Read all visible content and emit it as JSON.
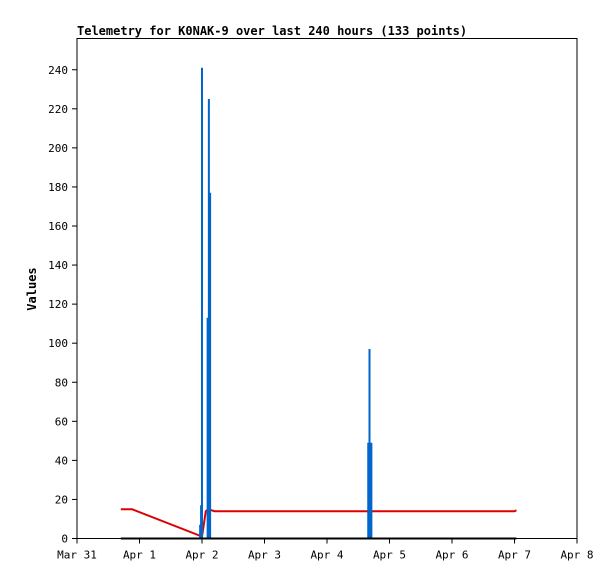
{
  "chart_data": {
    "type": "line",
    "title": "Telemetry for K0NAK-9 over last 240 hours (133 points)",
    "xlabel": "",
    "ylabel": "Values",
    "x_ticks": [
      "Mar 31",
      "Apr 1",
      "Apr 2",
      "Apr 3",
      "Apr 4",
      "Apr 5",
      "Apr 6",
      "Apr 7",
      "Apr 8"
    ],
    "xlim": [
      0,
      8
    ],
    "ylim": [
      0,
      256
    ],
    "y_ticks": [
      0,
      20,
      40,
      60,
      80,
      100,
      120,
      140,
      160,
      180,
      200,
      220,
      240
    ],
    "grid": false,
    "legend": "none",
    "x_unit": "days from Mar 31 00:00",
    "series": [
      {
        "color": "#dd0000",
        "style": "line",
        "points": [
          [
            0.7,
            15
          ],
          [
            0.88,
            15
          ],
          [
            2.0,
            1
          ],
          [
            2.06,
            14
          ],
          [
            2.1,
            15
          ],
          [
            2.2,
            14
          ],
          [
            7.0,
            14
          ],
          [
            7.03,
            14.5
          ]
        ]
      },
      {
        "color": "#0066cc",
        "style": "spikes",
        "points": [
          [
            1.97,
            7
          ],
          [
            1.985,
            17
          ],
          [
            2.0,
            241
          ],
          [
            2.09,
            113
          ],
          [
            2.11,
            225
          ],
          [
            2.13,
            177
          ],
          [
            4.66,
            49
          ],
          [
            4.68,
            97
          ],
          [
            4.71,
            49
          ]
        ]
      },
      {
        "color": "#000000",
        "style": "line",
        "points": [
          [
            0.7,
            0
          ],
          [
            7.03,
            0
          ]
        ]
      }
    ]
  }
}
